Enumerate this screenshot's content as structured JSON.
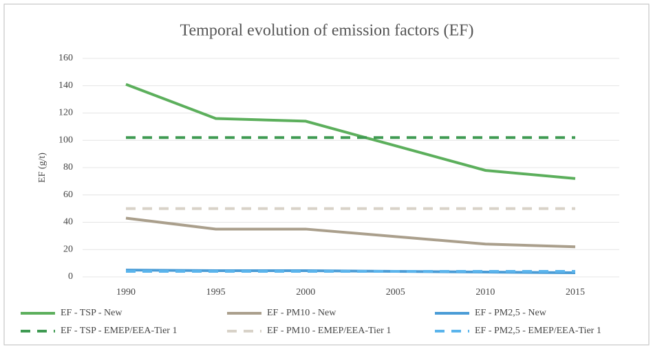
{
  "chart_data": {
    "type": "line",
    "title": "Temporal evolution of emission factors (EF)",
    "y_label": "EF (g/t)",
    "x": [
      1990,
      1995,
      2000,
      2005,
      2010,
      2015
    ],
    "xlim": [
      1990,
      2015
    ],
    "xticks": [
      1990,
      1995,
      2000,
      2005,
      2010,
      2015
    ],
    "ylim": [
      0,
      160
    ],
    "yticks": [
      0,
      20,
      40,
      60,
      80,
      100,
      120,
      140,
      160
    ],
    "grid": true,
    "legend": "bottom",
    "series": [
      {
        "name": "EF - TSP - New",
        "color": "#5caf5c",
        "dashed": false,
        "values": [
          141,
          116,
          114,
          96,
          78,
          72
        ]
      },
      {
        "name": "EF - PM10 - New",
        "color": "#aa9f8c",
        "dashed": false,
        "values": [
          43,
          35,
          35,
          29.5,
          24,
          22
        ]
      },
      {
        "name": "EF - PM2,5 - New",
        "color": "#4a9cd6",
        "dashed": false,
        "values": [
          5,
          4.5,
          4.5,
          4,
          3.5,
          3
        ]
      },
      {
        "name": "EF - TSP - EMEP/EEA-Tier 1",
        "color": "#3f9a52",
        "dashed": true,
        "values": [
          102,
          102,
          102,
          102,
          102,
          102
        ]
      },
      {
        "name": "EF - PM10 - EMEP/EEA-Tier 1",
        "color": "#d8d2c8",
        "dashed": true,
        "values": [
          50,
          50,
          50,
          50,
          50,
          50
        ]
      },
      {
        "name": "EF - PM2,5 - EMEP/EEA-Tier 1",
        "color": "#5ab4ec",
        "dashed": true,
        "values": [
          4,
          4,
          4,
          4,
          4,
          4
        ]
      }
    ]
  }
}
